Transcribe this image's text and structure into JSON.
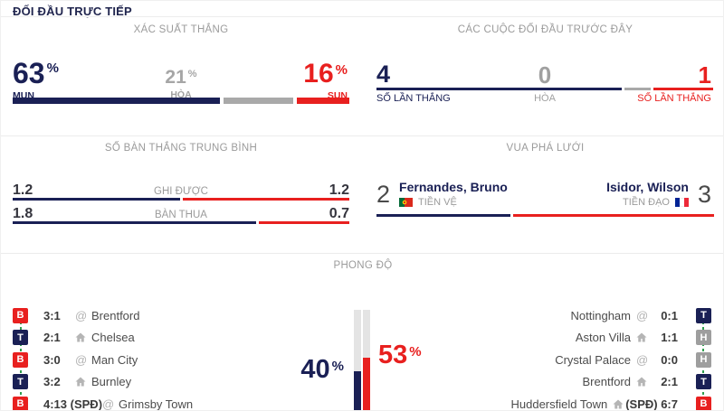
{
  "header": {
    "title": "ĐỐI ĐẦU TRỰC TIẾP"
  },
  "colors": {
    "home": "#1a2055",
    "away": "#e8201f",
    "draw": "#9e9e9e",
    "connector_green": "#2f9e4f",
    "result": {
      "win": "#1a2055",
      "draw": "#9e9e9e",
      "loss": "#e8201f"
    }
  },
  "icons": {
    "home_venue": "house-icon",
    "away_venue": "at-sign-icon",
    "home_flag": "portugal-flag",
    "away_flag": "france-flag"
  },
  "misc": {
    "pct": "%"
  },
  "win_probability": {
    "title": "XÁC SUẤT THẮNG",
    "home": {
      "value": 63,
      "pct": 63,
      "label": "MUN"
    },
    "draw": {
      "value": 21,
      "pct": 21,
      "label": "HÒA"
    },
    "away": {
      "value": 16,
      "pct": 16,
      "label": "SUN"
    }
  },
  "previous_meetings": {
    "title": "CÁC CUỘC ĐỐI ĐẦU TRƯỚC ĐÂY",
    "home": {
      "value": 4,
      "bar_pct": 74,
      "label": "SỐ LẦN THẮNG"
    },
    "draw": {
      "value": 0,
      "bar_pct": 8,
      "label": "HÒA"
    },
    "away": {
      "value": 1,
      "bar_pct": 18,
      "label": "SỐ LẦN THẮNG"
    }
  },
  "avg_goals": {
    "title": "SỐ BÀN THẮNG TRUNG BÌNH",
    "rows": [
      {
        "label": "GHI ĐƯỢC",
        "home": "1.2",
        "away": "1.2",
        "home_pct": 50,
        "away_pct": 50
      },
      {
        "label": "BÀN THUA",
        "home": "1.8",
        "away": "0.7",
        "home_pct": 73,
        "away_pct": 27
      }
    ]
  },
  "top_scorer": {
    "title": "VUA PHÁ LƯỚI",
    "home": {
      "goals": 2,
      "name": "Fernandes, Bruno",
      "position": "TIỀN VỆ",
      "flag": "portugal-flag"
    },
    "away": {
      "goals": 3,
      "name": "Isidor, Wilson",
      "position": "TIỀN ĐẠO",
      "flag": "france-flag"
    },
    "home_pct": 40,
    "away_pct": 60
  },
  "form": {
    "title": "PHONG ĐỘ",
    "home_pct": 40,
    "away_pct": 53,
    "home_matches": [
      {
        "result": "B",
        "result_type": "loss",
        "score": "3:1",
        "venue": "away",
        "opponent": "Brentford"
      },
      {
        "result": "T",
        "result_type": "win",
        "score": "2:1",
        "venue": "home",
        "opponent": "Chelsea"
      },
      {
        "result": "B",
        "result_type": "loss",
        "score": "3:0",
        "venue": "away",
        "opponent": "Man City"
      },
      {
        "result": "T",
        "result_type": "win",
        "score": "3:2",
        "venue": "home",
        "opponent": "Burnley"
      },
      {
        "result": "B",
        "result_type": "loss",
        "score": "4:13 (SPĐ)",
        "venue": "away",
        "opponent": "Grimsby Town"
      }
    ],
    "away_matches": [
      {
        "result": "T",
        "result_type": "win",
        "score": "0:1",
        "venue": "away",
        "opponent": "Nottingham"
      },
      {
        "result": "H",
        "result_type": "draw",
        "score": "1:1",
        "venue": "home",
        "opponent": "Aston Villa"
      },
      {
        "result": "H",
        "result_type": "draw",
        "score": "0:0",
        "venue": "away",
        "opponent": "Crystal Palace"
      },
      {
        "result": "T",
        "result_type": "win",
        "score": "2:1",
        "venue": "home",
        "opponent": "Brentford"
      },
      {
        "result": "B",
        "result_type": "loss",
        "score": "(SPĐ) 6:7",
        "venue": "home",
        "opponent": "Huddersfield Town"
      }
    ]
  }
}
